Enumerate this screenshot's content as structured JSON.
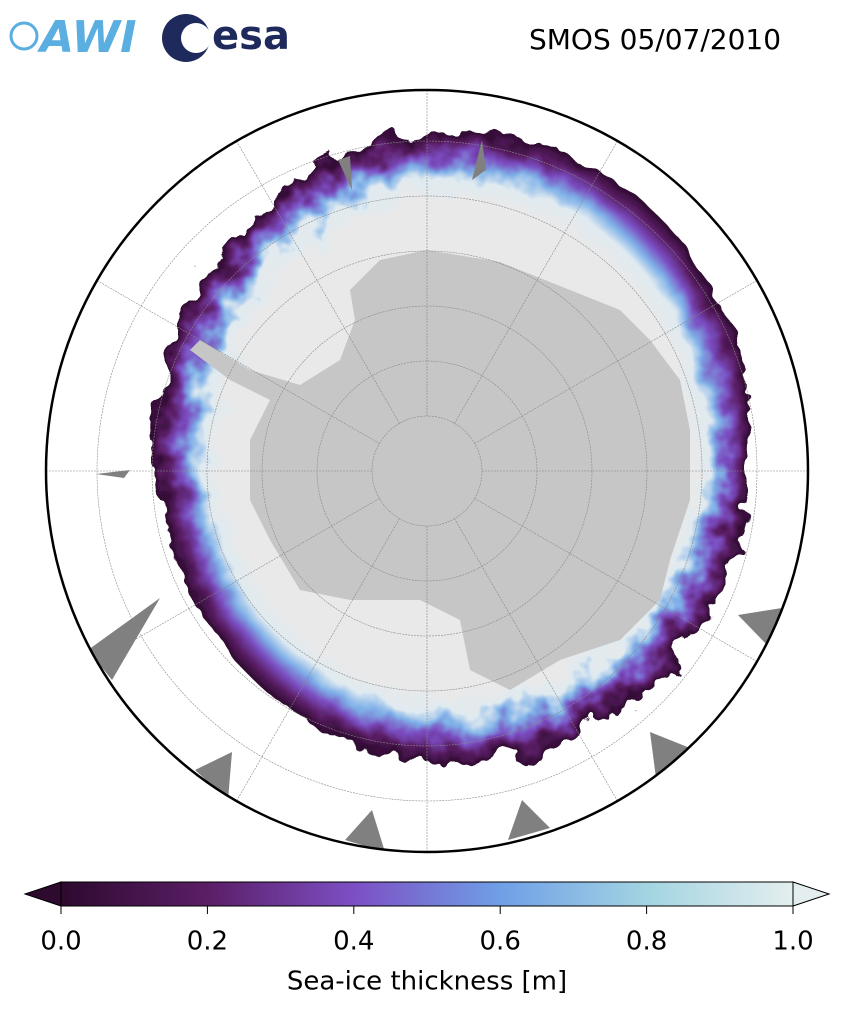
{
  "header": {
    "logos": [
      "AWI",
      "esa"
    ],
    "title": "SMOS 05/07/2010"
  },
  "colorbar": {
    "label": "Sea-ice thickness [m]",
    "range": [
      0,
      1
    ],
    "ticks": [
      {
        "value": 0,
        "label": "0.0"
      },
      {
        "value": 0.2,
        "label": "0.2"
      },
      {
        "value": 0.4,
        "label": "0.4"
      },
      {
        "value": 0.6,
        "label": "0.6"
      },
      {
        "value": 0.8,
        "label": "0.8"
      },
      {
        "value": 1,
        "label": "1.0"
      }
    ],
    "colors": [
      "#2d0a2e",
      "#5b1e66",
      "#7c4fc4",
      "#6f9fe6",
      "#a3d4e2",
      "#e4eeee"
    ]
  }
}
